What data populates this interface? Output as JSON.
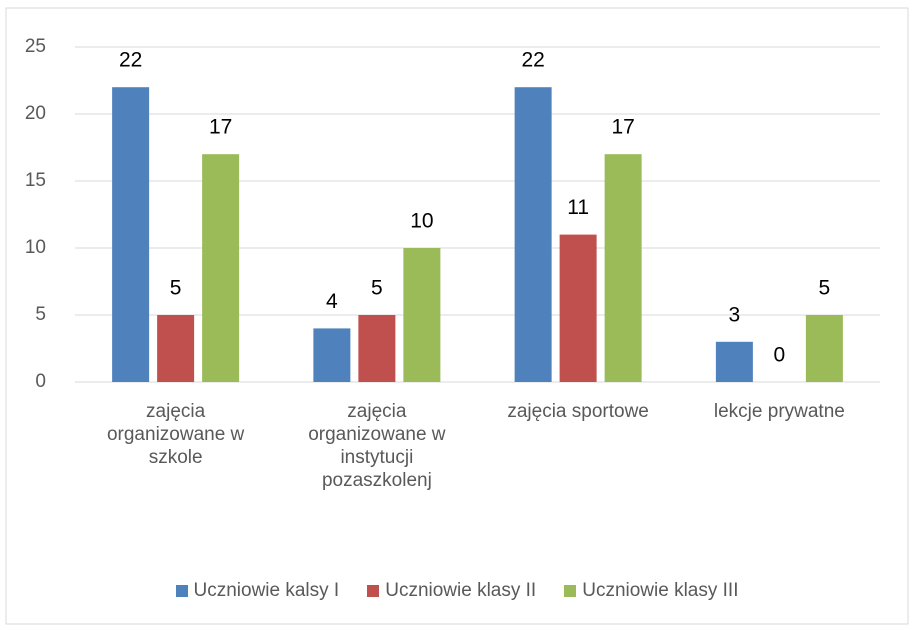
{
  "chart_data": {
    "type": "bar",
    "categories": [
      "zajęcia organizowane w szkole",
      "zajęcia organizowane w instytucji pozaszkolenj",
      "zajęcia sportowe",
      "lekcje prywatne"
    ],
    "series": [
      {
        "name": "Uczniowie kalsy I",
        "color": "#4f81bd",
        "values": [
          22,
          4,
          22,
          3
        ]
      },
      {
        "name": "Uczniowie klasy II",
        "color": "#c0504d",
        "values": [
          5,
          5,
          11,
          0
        ]
      },
      {
        "name": "Uczniowie klasy III",
        "color": "#9bbb59",
        "values": [
          17,
          10,
          17,
          5
        ]
      }
    ],
    "ylim": [
      0,
      25
    ],
    "yticks": [
      0,
      5,
      10,
      15,
      20,
      25
    ],
    "grid": true,
    "legend": "bottom"
  }
}
